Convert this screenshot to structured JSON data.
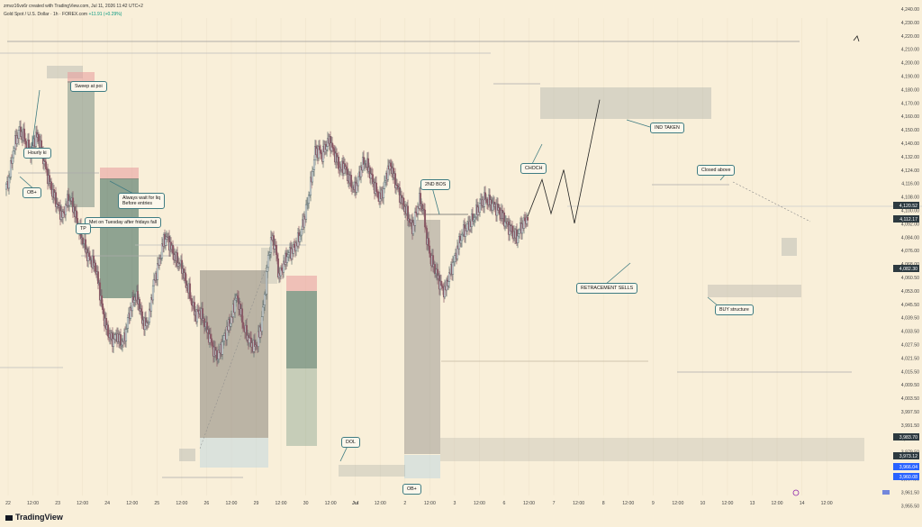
{
  "header": {
    "author_line": "zmvz16vs6r created with TradingView.com, Jul 11, 2026 11:42 UTC+2",
    "symbol_line": "Gold Spot / U.S. Dollar · 1h · FOREX.com",
    "change": "+11.91 (+0.29%)"
  },
  "footer": {
    "brand": "TradingView"
  },
  "colors": {
    "up": "#5e6e70",
    "down": "#8a5a66",
    "bg": "#f9efd9",
    "accent": "#3f7c82"
  },
  "chart_data": {
    "type": "candlestick",
    "y_ticks": [
      "4,240.00",
      "4,230.00",
      "4,220.00",
      "4,210.00",
      "4,200.00",
      "4,190.00",
      "4,180.00",
      "4,170.00",
      "4,160.00",
      "4,150.00",
      "4,140.00",
      "4,132.00",
      "4,124.00",
      "4,116.00",
      "4,108.00",
      "4,100.00",
      "4,092.00",
      "4,084.00",
      "4,076.00",
      "4,068.00",
      "4,060.50",
      "4,053.00",
      "4,045.50",
      "4,039.50",
      "4,033.50",
      "4,027.50",
      "4,021.50",
      "4,015.50",
      "4,009.50",
      "4,003.50",
      "3,997.50",
      "3,991.50",
      "3,985.50",
      "3,979.50",
      "3,973.50",
      "3,967.50",
      "3,961.50",
      "3,955.50"
    ],
    "x_ticks": [
      "22",
      "12:00",
      "23",
      "12:00",
      "24",
      "12:00",
      "25",
      "12:00",
      "26",
      "12:00",
      "29",
      "12:00",
      "30",
      "12:00",
      "Jul",
      "12:00",
      "2",
      "12:00",
      "3",
      "12:00",
      "6",
      "12:00",
      "7",
      "12:00",
      "8",
      "12:00",
      "9",
      "12:00",
      "10",
      "12:00",
      "13",
      "12:00",
      "14",
      "12:00"
    ],
    "price_labels": [
      {
        "text": "4,120.52",
        "style": "dark"
      },
      {
        "text": "4,112.17",
        "style": "dark"
      },
      {
        "text": "4,082.30",
        "style": "dark"
      },
      {
        "text": "3,983.70",
        "style": "dark"
      },
      {
        "text": "3,973.12",
        "style": "dark"
      },
      {
        "text": "3,966.04",
        "style": "blue"
      },
      {
        "text": "3,960.08",
        "style": "blue"
      }
    ],
    "annotations": [
      {
        "id": "sweep",
        "text": "Sweep at poi"
      },
      {
        "id": "hourly",
        "text": "Hourly ki"
      },
      {
        "id": "ob1",
        "text": "OB+"
      },
      {
        "id": "liq",
        "text": "Always wait for liq\nBefore entries"
      },
      {
        "id": "tuesday",
        "text": "Met on Tuesday after fridays fall"
      },
      {
        "id": "tp",
        "text": "TP"
      },
      {
        "id": "bos",
        "text": "2ND BOS"
      },
      {
        "id": "choch",
        "text": "CHOCH"
      },
      {
        "id": "ind",
        "text": "IND TAKEN"
      },
      {
        "id": "closed",
        "text": "Closed above"
      },
      {
        "id": "retr",
        "text": "RETRACEMENT SELLS"
      },
      {
        "id": "buy",
        "text": "BUY structure"
      },
      {
        "id": "dol",
        "text": "DOL"
      },
      {
        "id": "ob2",
        "text": "OB+"
      }
    ],
    "price_path": [
      [
        0,
        4140
      ],
      [
        4,
        4150
      ],
      [
        8,
        4175
      ],
      [
        12,
        4192
      ],
      [
        16,
        4200
      ],
      [
        20,
        4195
      ],
      [
        24,
        4185
      ],
      [
        28,
        4178
      ],
      [
        32,
        4190
      ],
      [
        36,
        4195
      ],
      [
        40,
        4180
      ],
      [
        44,
        4165
      ],
      [
        48,
        4150
      ],
      [
        52,
        4138
      ],
      [
        56,
        4128
      ],
      [
        60,
        4118
      ],
      [
        64,
        4112
      ],
      [
        68,
        4126
      ],
      [
        72,
        4130
      ],
      [
        76,
        4120
      ],
      [
        80,
        4105
      ],
      [
        84,
        4092
      ],
      [
        88,
        4082
      ],
      [
        92,
        4070
      ],
      [
        96,
        4066
      ],
      [
        100,
        4060
      ],
      [
        104,
        4040
      ],
      [
        108,
        4015
      ],
      [
        112,
        3998
      ],
      [
        116,
        3988
      ],
      [
        120,
        3985
      ],
      [
        124,
        3990
      ],
      [
        128,
        3982
      ],
      [
        132,
        3985
      ],
      [
        136,
        4005
      ],
      [
        140,
        4020
      ],
      [
        144,
        4030
      ],
      [
        148,
        4025
      ],
      [
        152,
        4005
      ],
      [
        156,
        4000
      ],
      [
        160,
        4010
      ],
      [
        164,
        4040
      ],
      [
        168,
        4055
      ],
      [
        172,
        4070
      ],
      [
        176,
        4088
      ],
      [
        180,
        4090
      ],
      [
        184,
        4080
      ],
      [
        188,
        4070
      ],
      [
        192,
        4065
      ],
      [
        196,
        4060
      ],
      [
        200,
        4045
      ],
      [
        204,
        4035
      ],
      [
        208,
        4020
      ],
      [
        212,
        4010
      ],
      [
        216,
        4015
      ],
      [
        220,
        4005
      ],
      [
        224,
        3995
      ],
      [
        228,
        3985
      ],
      [
        232,
        3972
      ],
      [
        236,
        3968
      ],
      [
        240,
        3978
      ],
      [
        244,
        3990
      ],
      [
        248,
        4000
      ],
      [
        252,
        4010
      ],
      [
        256,
        4030
      ],
      [
        260,
        4020
      ],
      [
        264,
        4000
      ],
      [
        268,
        3990
      ],
      [
        272,
        3983
      ],
      [
        276,
        3978
      ],
      [
        280,
        3982
      ],
      [
        284,
        4000
      ],
      [
        288,
        4030
      ],
      [
        292,
        4070
      ],
      [
        296,
        4090
      ],
      [
        300,
        4080
      ],
      [
        304,
        4050
      ],
      [
        308,
        4060
      ],
      [
        312,
        4070
      ],
      [
        316,
        4075
      ],
      [
        320,
        4078
      ],
      [
        324,
        4085
      ],
      [
        328,
        4095
      ],
      [
        332,
        4110
      ],
      [
        336,
        4128
      ],
      [
        340,
        4150
      ],
      [
        344,
        4178
      ],
      [
        348,
        4180
      ],
      [
        352,
        4175
      ],
      [
        356,
        4185
      ],
      [
        360,
        4190
      ],
      [
        364,
        4180
      ],
      [
        368,
        4170
      ],
      [
        372,
        4160
      ],
      [
        376,
        4165
      ],
      [
        380,
        4155
      ],
      [
        384,
        4145
      ],
      [
        388,
        4140
      ],
      [
        392,
        4150
      ],
      [
        396,
        4165
      ],
      [
        400,
        4168
      ],
      [
        404,
        4160
      ],
      [
        408,
        4148
      ],
      [
        412,
        4138
      ],
      [
        416,
        4130
      ],
      [
        420,
        4140
      ],
      [
        424,
        4158
      ],
      [
        428,
        4165
      ],
      [
        432,
        4150
      ],
      [
        436,
        4140
      ],
      [
        440,
        4128
      ],
      [
        444,
        4120
      ],
      [
        448,
        4110
      ],
      [
        452,
        4100
      ],
      [
        456,
        4115
      ],
      [
        460,
        4128
      ],
      [
        464,
        4120
      ],
      [
        468,
        4090
      ],
      [
        472,
        4070
      ],
      [
        476,
        4060
      ],
      [
        480,
        4050
      ],
      [
        484,
        4040
      ],
      [
        488,
        4035
      ],
      [
        492,
        4048
      ],
      [
        496,
        4060
      ],
      [
        500,
        4072
      ],
      [
        504,
        4085
      ],
      [
        508,
        4095
      ],
      [
        512,
        4100
      ],
      [
        516,
        4105
      ],
      [
        520,
        4110
      ],
      [
        524,
        4118
      ],
      [
        528,
        4125
      ],
      [
        532,
        4130
      ],
      [
        536,
        4128
      ],
      [
        540,
        4125
      ],
      [
        544,
        4122
      ],
      [
        548,
        4118
      ],
      [
        552,
        4112
      ],
      [
        556,
        4105
      ],
      [
        560,
        4100
      ],
      [
        564,
        4095
      ],
      [
        568,
        4090
      ],
      [
        572,
        4100
      ],
      [
        576,
        4105
      ],
      [
        580,
        4112
      ]
    ],
    "projection_path": [
      [
        580,
        4112
      ],
      [
        596,
        4150
      ],
      [
        606,
        4115
      ],
      [
        620,
        4160
      ],
      [
        632,
        4105
      ],
      [
        660,
        4232
      ]
    ]
  }
}
